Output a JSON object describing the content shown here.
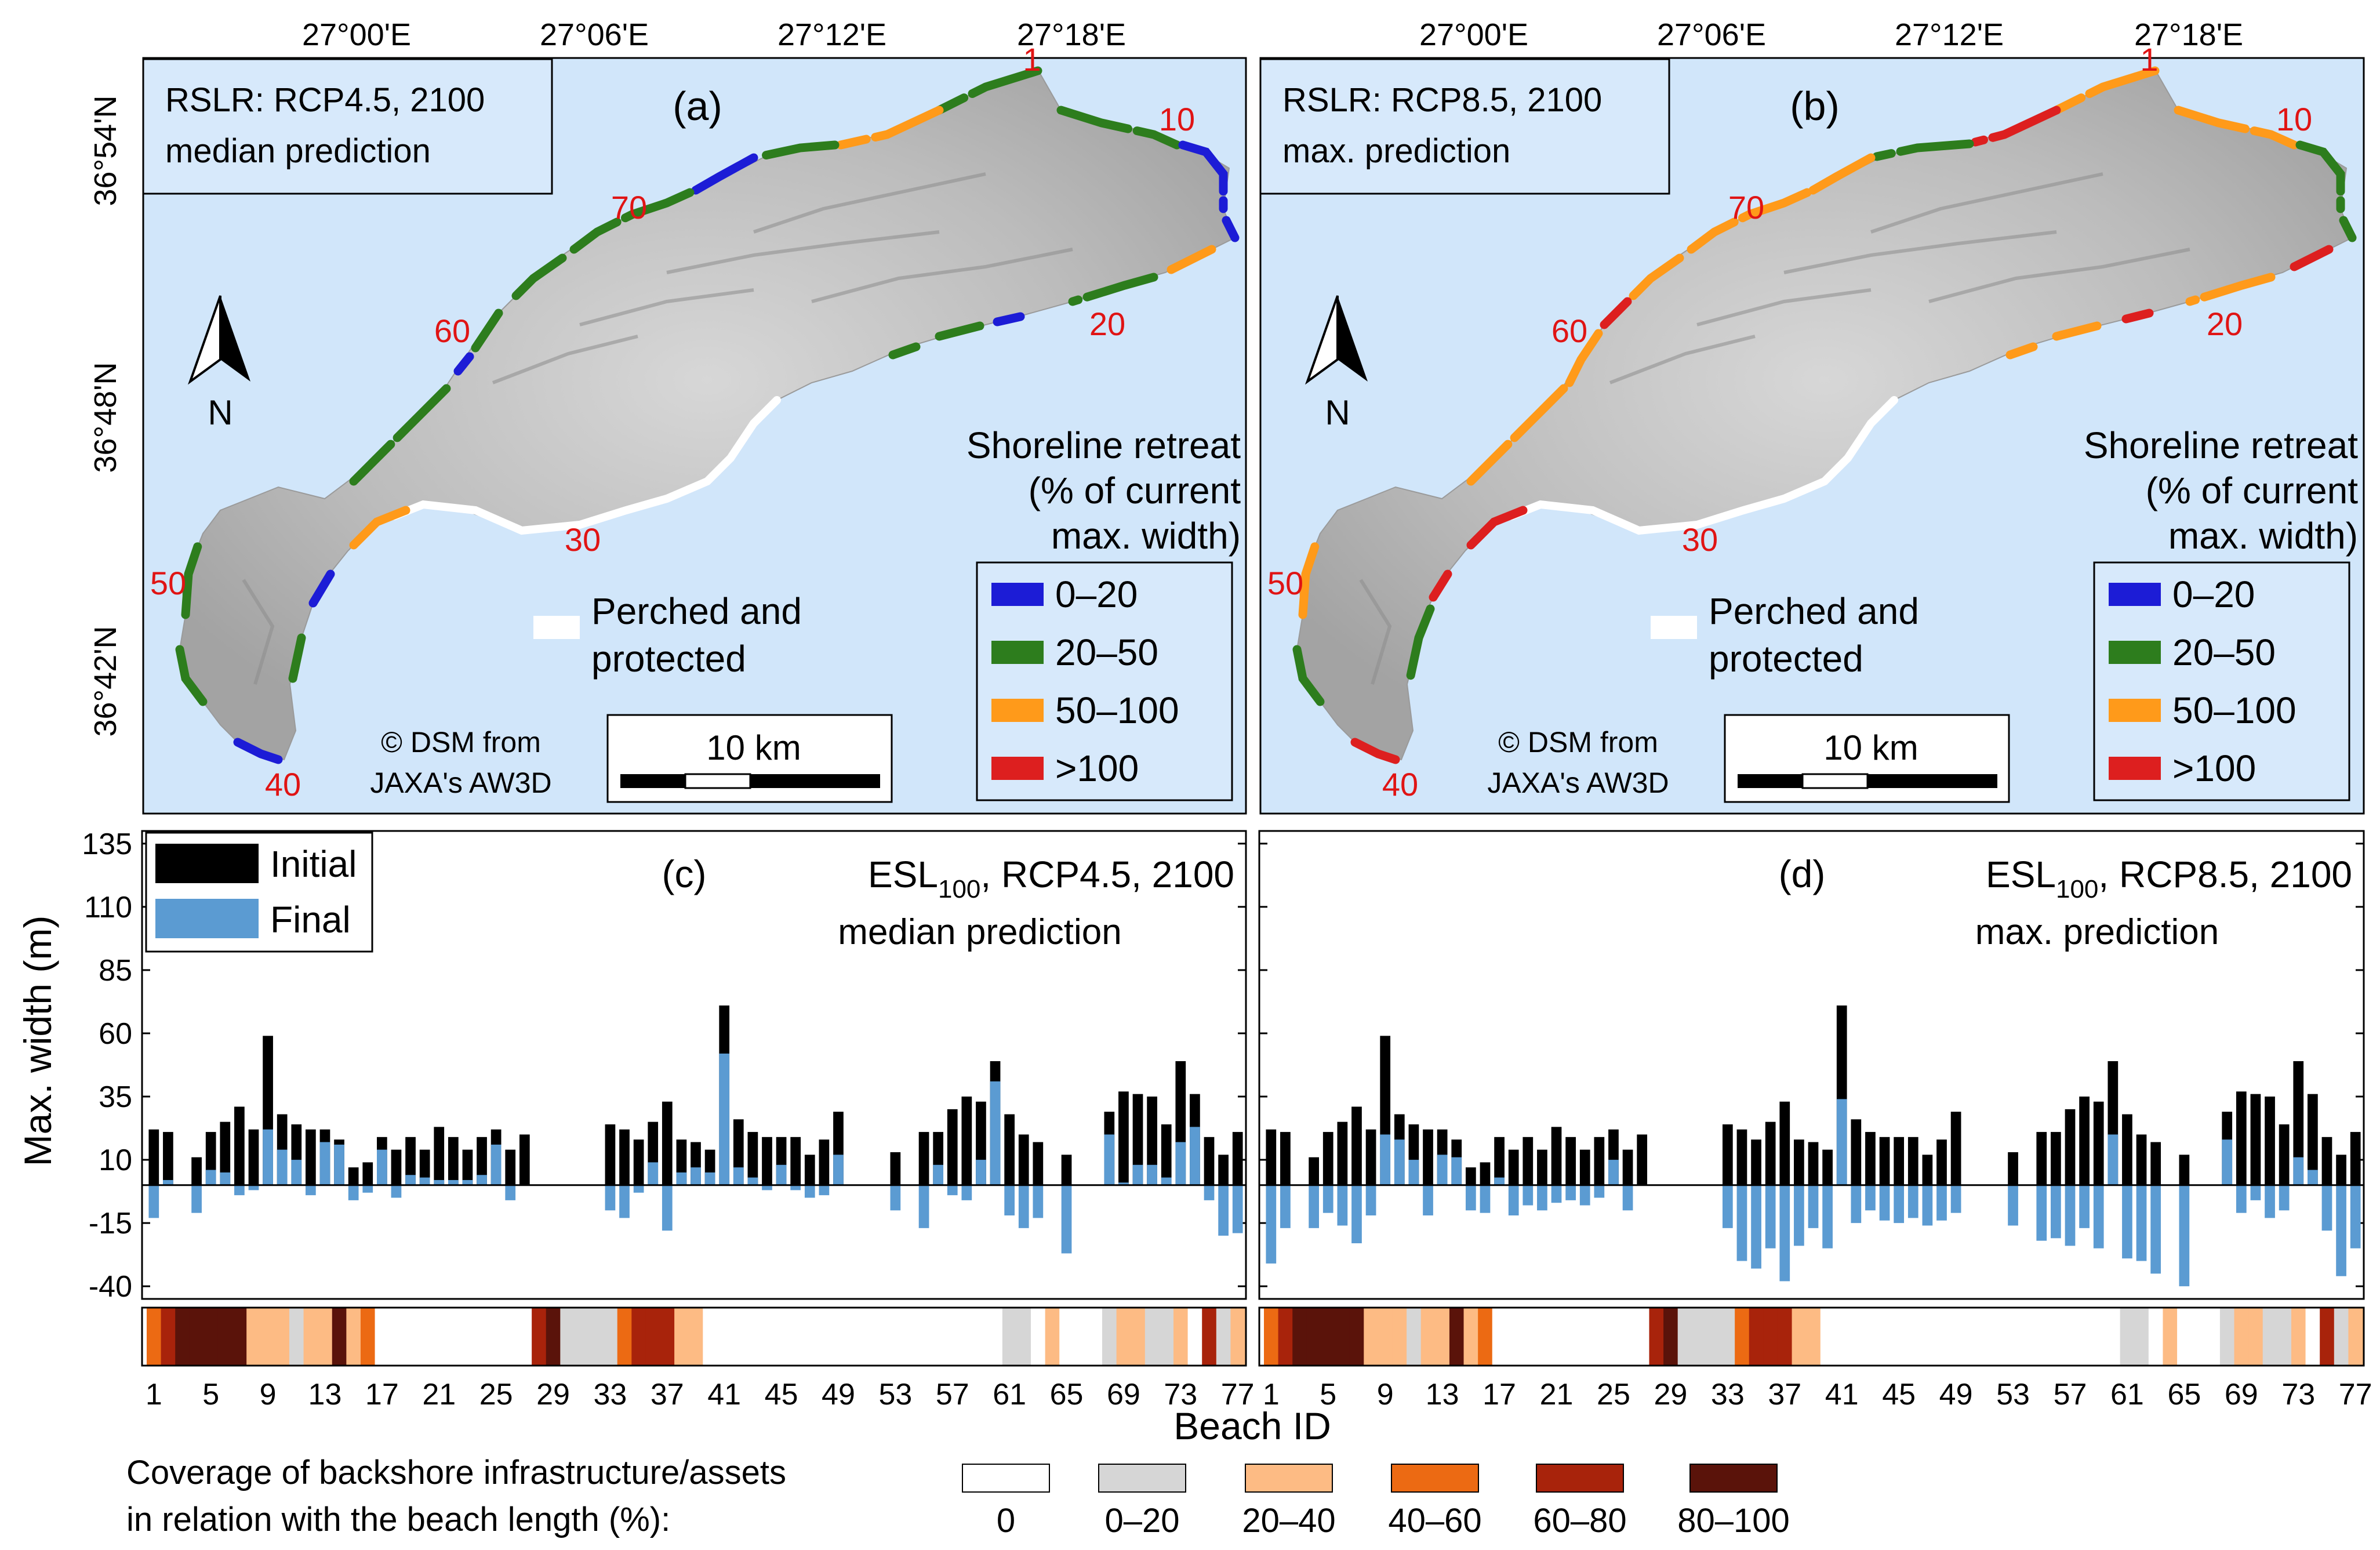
{
  "maps": [
    {
      "panel_label": "(a)",
      "scenario_line1": "RSLR: RCP4.5, 2100",
      "scenario_line2": "median prediction",
      "beach_labels": [
        "1",
        "10",
        "20",
        "30",
        "40",
        "50",
        "60",
        "70"
      ]
    },
    {
      "panel_label": "(b)",
      "scenario_line1": "RSLR: RCP8.5, 2100",
      "scenario_line2": "max. prediction",
      "beach_labels": [
        "1",
        "10",
        "20",
        "30",
        "40",
        "50",
        "60",
        "70"
      ]
    }
  ],
  "map_axes": {
    "lon_ticks": [
      "27°00'E",
      "27°06'E",
      "27°12'E",
      "27°18'E"
    ],
    "lat_ticks": [
      "36°54'N",
      "36°48'N",
      "36°42'N"
    ]
  },
  "map_common": {
    "north_label": "N",
    "legend_title_lines": [
      "Shoreline retreat",
      "(% of current",
      "max. width)"
    ],
    "retreat_classes": [
      {
        "label": "0–20",
        "color": "#1c1cd6"
      },
      {
        "label": "20–50",
        "color": "#2d7d1d"
      },
      {
        "label": "50–100",
        "color": "#ff9a1a"
      },
      {
        "label": ">100",
        "color": "#dd1f1f"
      }
    ],
    "perched_label_lines": [
      "Perched and",
      "protected"
    ],
    "credit_lines": [
      "© DSM from",
      "JAXA's AW3D"
    ],
    "scalebar_label": "10 km",
    "sea_color": "#d1e6fa",
    "land_color": "#bdbdbd"
  },
  "chart_data": [
    {
      "type": "bar",
      "panel_label": "(c)",
      "title_main": "ESL",
      "title_sub": "100",
      "title_rest": ", RCP4.5, 2100",
      "title_line2": "median prediction",
      "xlabel": "Beach ID",
      "ylabel": "Max. width (m)",
      "ylim": [
        -45,
        140
      ],
      "yticks": [
        135,
        110,
        85,
        60,
        35,
        10,
        -15,
        -40
      ],
      "xticks": [
        1,
        5,
        9,
        13,
        17,
        21,
        25,
        29,
        33,
        37,
        41,
        45,
        49,
        53,
        57,
        61,
        65,
        69,
        73,
        77
      ],
      "series": [
        {
          "name": "Initial",
          "color": "#000000",
          "values": [
            22,
            21,
            0,
            11,
            21,
            25,
            31,
            22,
            59,
            28,
            24,
            22,
            22,
            18,
            7,
            9,
            19,
            14,
            19,
            14,
            23,
            19,
            14,
            19,
            22,
            14,
            20,
            0,
            0,
            0,
            0,
            0,
            24,
            22,
            18,
            25,
            33,
            18,
            17,
            14,
            71,
            26,
            21,
            19,
            19,
            19,
            12,
            18,
            29,
            0,
            0,
            0,
            13,
            0,
            21,
            21,
            30,
            35,
            33,
            49,
            28,
            20,
            17,
            0,
            12,
            0,
            0,
            29,
            37,
            36,
            35,
            24,
            49,
            36,
            19,
            12,
            21
          ]
        },
        {
          "name": "Final",
          "color": "#5b9bd2",
          "values": [
            -13,
            2,
            0,
            -11,
            6,
            5,
            -4,
            -2,
            22,
            14,
            10,
            -4,
            17,
            16,
            -6,
            -3,
            14,
            -5,
            4,
            3,
            2,
            2,
            2,
            4,
            16,
            -6,
            0,
            0,
            0,
            0,
            0,
            0,
            -10,
            -13,
            -3,
            9,
            -18,
            5,
            7,
            5,
            52,
            7,
            3,
            -2,
            8,
            -2,
            -5,
            -4,
            12,
            0,
            0,
            0,
            -10,
            0,
            -17,
            8,
            -4,
            -6,
            10,
            41,
            -12,
            -17,
            -13,
            0,
            -27,
            0,
            0,
            20,
            1,
            8,
            8,
            3,
            17,
            23,
            -6,
            -20,
            -19
          ]
        }
      ],
      "legend": [
        "Initial",
        "Final"
      ]
    },
    {
      "type": "bar",
      "panel_label": "(d)",
      "title_main": "ESL",
      "title_sub": "100",
      "title_rest": ", RCP8.5, 2100",
      "title_line2": "max. prediction",
      "xlabel": "Beach ID",
      "ylim": [
        -45,
        140
      ],
      "yticks": [
        135,
        110,
        85,
        60,
        35,
        10,
        -15,
        -40
      ],
      "xticks": [
        1,
        5,
        9,
        13,
        17,
        21,
        25,
        29,
        33,
        37,
        41,
        45,
        49,
        53,
        57,
        61,
        65,
        69,
        73,
        77
      ],
      "series": [
        {
          "name": "Initial",
          "color": "#000000",
          "values": [
            22,
            21,
            0,
            11,
            21,
            25,
            31,
            22,
            59,
            28,
            24,
            22,
            22,
            18,
            7,
            9,
            19,
            14,
            19,
            14,
            23,
            19,
            14,
            19,
            22,
            14,
            20,
            0,
            0,
            0,
            0,
            0,
            24,
            22,
            18,
            25,
            33,
            18,
            17,
            14,
            71,
            26,
            21,
            19,
            19,
            19,
            12,
            18,
            29,
            0,
            0,
            0,
            13,
            0,
            21,
            21,
            30,
            35,
            33,
            49,
            28,
            20,
            17,
            0,
            12,
            0,
            0,
            29,
            37,
            36,
            35,
            24,
            49,
            36,
            19,
            12,
            21
          ]
        },
        {
          "name": "Final",
          "color": "#5b9bd2",
          "values": [
            -31,
            -17,
            0,
            -17,
            -11,
            -16,
            -23,
            -12,
            20,
            18,
            10,
            -12,
            12,
            11,
            -10,
            -11,
            3,
            -12,
            -8,
            -10,
            -7,
            -6,
            -8,
            -5,
            10,
            -10,
            0,
            0,
            0,
            0,
            0,
            0,
            -17,
            -30,
            -33,
            -25,
            -38,
            -24,
            -17,
            -25,
            34,
            -15,
            -10,
            -14,
            -15,
            -13,
            -16,
            -14,
            -11,
            0,
            0,
            0,
            -16,
            0,
            -22,
            -21,
            -24,
            -17,
            -25,
            20,
            -29,
            -30,
            -35,
            0,
            -40,
            0,
            0,
            18,
            -11,
            -6,
            -13,
            -10,
            11,
            6,
            -18,
            -36,
            -25
          ]
        }
      ],
      "legend": []
    }
  ],
  "coverage_strip": {
    "legend_text_lines": [
      "Coverage of backshore infrastructure/assets",
      "in relation with the beach length (%):"
    ],
    "classes": [
      {
        "label": "0",
        "color": "#ffffff"
      },
      {
        "label": "0–20",
        "color": "#d6d6d6"
      },
      {
        "label": "20–40",
        "color": "#fdbb84"
      },
      {
        "label": "40–60",
        "color": "#ec6a13"
      },
      {
        "label": "60–80",
        "color": "#a8230b"
      },
      {
        "label": "80–100",
        "color": "#5a130a"
      }
    ],
    "values": [
      3,
      4,
      5,
      5,
      5,
      5,
      5,
      2,
      2,
      2,
      1,
      2,
      2,
      5,
      2,
      3,
      0,
      0,
      0,
      0,
      0,
      0,
      0,
      0,
      0,
      0,
      0,
      4,
      5,
      1,
      1,
      1,
      1,
      3,
      4,
      4,
      4,
      2,
      2,
      0,
      0,
      0,
      0,
      0,
      0,
      0,
      0,
      0,
      0,
      0,
      0,
      0,
      0,
      0,
      0,
      0,
      0,
      0,
      0,
      0,
      1,
      1,
      0,
      2,
      0,
      0,
      0,
      1,
      2,
      2,
      1,
      1,
      2,
      0,
      4,
      1,
      2
    ]
  }
}
